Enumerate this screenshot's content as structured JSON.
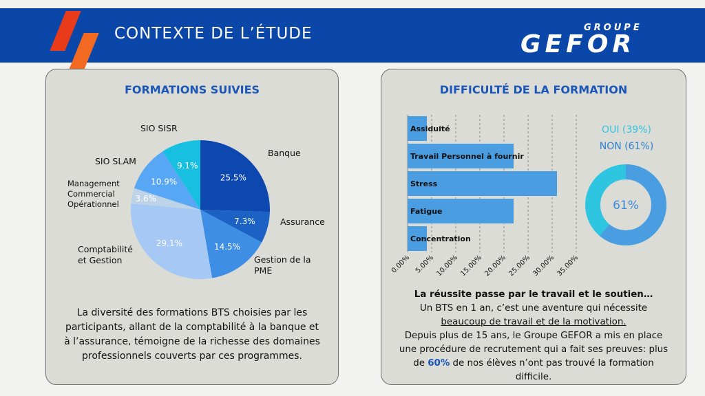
{
  "header": {
    "title": "CONTEXTE DE L’ÉTUDE",
    "logo_top": "GROUPE",
    "logo_main": "GEFOR",
    "color": "#0a47a8"
  },
  "formations": {
    "title": "FORMATIONS SUIVIES",
    "description": "La diversité des formations BTS choisies par les participants, allant de la comptabilité à la banque et à l’assurance, témoigne de la richesse des domaines professionnels couverts par ces programmes.",
    "chart_data": {
      "type": "pie",
      "slices": [
        {
          "label": "Banque",
          "value": 25.5,
          "text": "25.5%",
          "color": "#0d47b0"
        },
        {
          "label": "Assurance",
          "value": 7.3,
          "text": "7.3%",
          "color": "#1b62c4"
        },
        {
          "label": "Gestion de la PME",
          "value": 14.5,
          "text": "14.5%",
          "color": "#3e8ee6"
        },
        {
          "label": "Comptabilité et Gestion",
          "value": 29.1,
          "text": "29.1%",
          "color": "#a5c8f5"
        },
        {
          "label": "Management Commercial Opérationnel",
          "value": 3.6,
          "text": "3.6%",
          "color": "#bcd3e8"
        },
        {
          "label": "SIO SLAM",
          "value": 10.9,
          "text": "10.9%",
          "color": "#58a7f5"
        },
        {
          "label": "SIO SISR",
          "value": 9.1,
          "text": "9.1%",
          "color": "#17c0e0"
        }
      ]
    }
  },
  "difficulte": {
    "title": "DIFFICULTÉ DE LA FORMATION",
    "chart_data": {
      "type": "bar",
      "orientation": "horizontal",
      "categories": [
        "Assiduité",
        "Travail Personnel à fournir",
        "Stress",
        "Fatigue",
        "Concentration"
      ],
      "values": [
        4,
        22,
        31,
        22,
        4
      ],
      "xlim": [
        0,
        35
      ],
      "xticks": [
        "0.00%",
        "5.00%",
        "10.00%",
        "15.00%",
        "20.00%",
        "25.00%",
        "30.00%",
        "35.00%"
      ],
      "grid": true,
      "bar_color": "#4a9de0"
    },
    "donut": {
      "type": "pie",
      "center_label": "61%",
      "legend": [
        {
          "label": "OUI (39%)",
          "value": 39,
          "color": "#2ec5e0"
        },
        {
          "label": "NON (61%)",
          "value": 61,
          "color": "#4a9de0"
        }
      ]
    },
    "text": {
      "l1": "La réussite passe par le travail et le soutien…",
      "l2": "Un BTS en 1 an, c’est une aventure qui nécessite",
      "l3": "beaucoup de travail et de la motivation.",
      "l4": "Depuis plus de 15 ans, le Groupe GEFOR  a mis en place",
      "l5": "une procédure de recrutement qui a fait ses preuves: plus",
      "l6a": "de ",
      "l6b": "60%",
      "l6c": " de nos élèves n’ont pas trouvé la formation",
      "l7": "difficile."
    }
  }
}
